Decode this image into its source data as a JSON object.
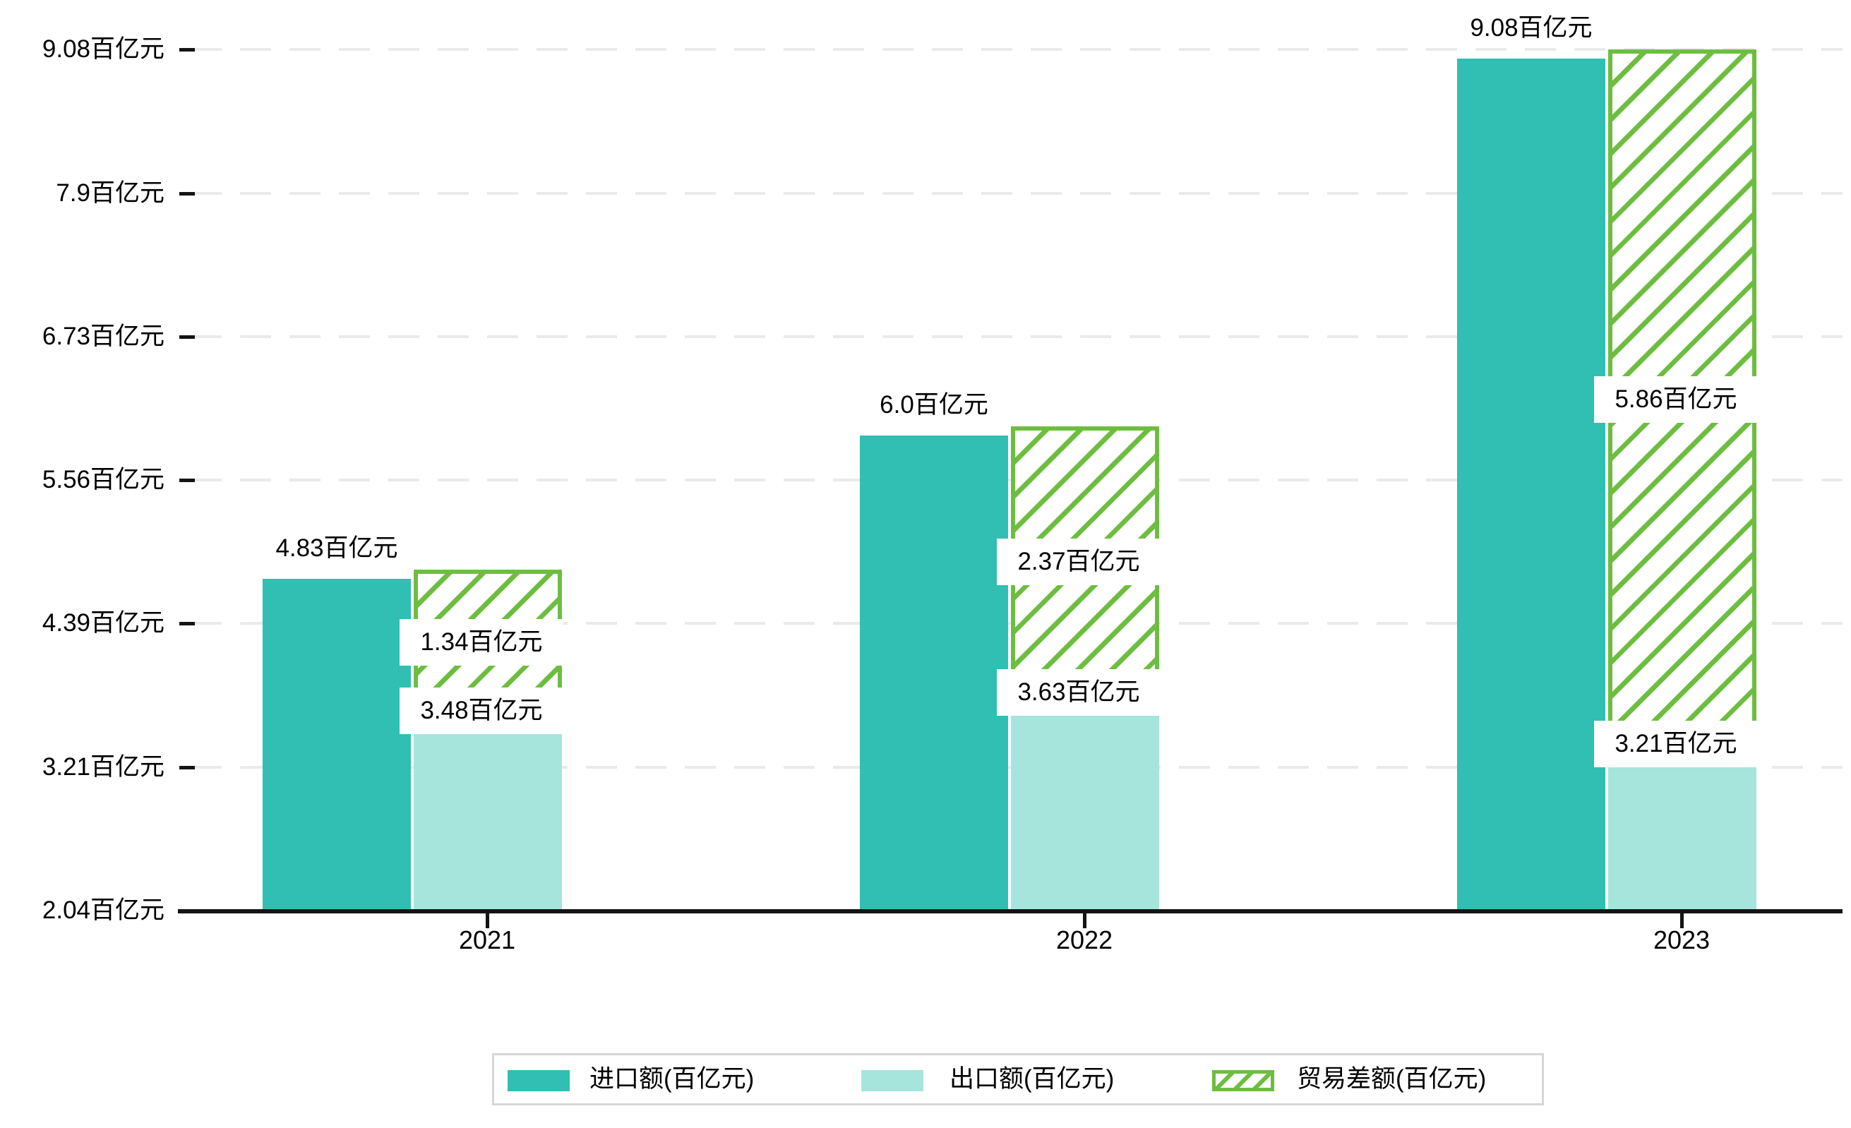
{
  "chart_data": {
    "type": "bar",
    "title": "",
    "unit": "百亿元",
    "categories": [
      "2021",
      "2022",
      "2023"
    ],
    "series": [
      {
        "name": "进口额(百亿元)",
        "values": [
          4.83,
          6.0,
          9.08
        ],
        "color": "#30bfb2",
        "style": "solid"
      },
      {
        "name": "出口额(百亿元)",
        "values": [
          3.48,
          3.63,
          3.21
        ],
        "color": "#a5e5dc",
        "style": "solid"
      },
      {
        "name": "贸易差额(百亿元)",
        "values": [
          1.34,
          2.37,
          5.86
        ],
        "color": "#6dbe40",
        "style": "hatched-floating",
        "note": "floating bar spanning from export value up to import value, drawn over the export bar column"
      }
    ],
    "bar_labels": {
      "import": [
        "4.83百亿元",
        "6.0百亿元",
        "9.08百亿元"
      ],
      "export": [
        "3.48百亿元",
        "3.63百亿元",
        "3.21百亿元"
      ],
      "diff": [
        "1.34百亿元",
        "2.37百亿元",
        "5.86百亿元"
      ]
    },
    "y_axis": {
      "tick_labels": [
        "9.08百亿元",
        "7.9百亿元",
        "6.73百亿元",
        "5.56百亿元",
        "4.39百亿元",
        "3.21百亿元",
        "2.04百亿元"
      ],
      "tick_values": [
        9.08,
        7.9,
        6.73,
        5.56,
        4.39,
        3.21,
        2.04
      ],
      "min": 2.04,
      "max": 9.08
    },
    "grid": true,
    "grid_style": "dashed-horizontal",
    "legend_position": "bottom",
    "legend": [
      "进口额(百亿元)",
      "出口额(百亿元)",
      "贸易差额(百亿元)"
    ]
  },
  "colors": {
    "import_bar": "#30bfb2",
    "export_bar": "#a5e5dc",
    "diff_hatch": "#6dbe40",
    "axis": "#141414",
    "gridline": "#eaeaea",
    "legend_border": "#d6d6d6",
    "background": "#ffffff",
    "text": "#000000"
  }
}
